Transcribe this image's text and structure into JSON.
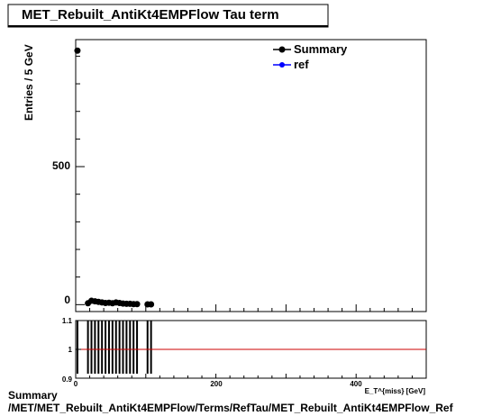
{
  "chart_data": {
    "type": "scatter",
    "title": "MET_Rebuilt_AntiKt4EMPFlow Tau term",
    "ylabel": "Entries / 5 GeV",
    "xlabel": "E_T^{miss} [GeV]",
    "xlim": [
      0,
      500
    ],
    "ylim": [
      -25,
      960
    ],
    "x_ticks": [
      "0",
      "200",
      "400"
    ],
    "y_ticks": [
      "0",
      "500"
    ],
    "legend_position": "top-right",
    "series": [
      {
        "name": "Summary",
        "color": "#000000",
        "points": [
          {
            "x": 2.5,
            "y": 920
          },
          {
            "x": 17.5,
            "y": 5
          },
          {
            "x": 22.5,
            "y": 14
          },
          {
            "x": 27.5,
            "y": 12
          },
          {
            "x": 32.5,
            "y": 10
          },
          {
            "x": 37.5,
            "y": 8
          },
          {
            "x": 42.5,
            "y": 6
          },
          {
            "x": 47.5,
            "y": 7
          },
          {
            "x": 52.5,
            "y": 5
          },
          {
            "x": 57.5,
            "y": 8
          },
          {
            "x": 62.5,
            "y": 6
          },
          {
            "x": 67.5,
            "y": 4
          },
          {
            "x": 72.5,
            "y": 3
          },
          {
            "x": 77.5,
            "y": 3
          },
          {
            "x": 82.5,
            "y": 2
          },
          {
            "x": 87.5,
            "y": 2
          },
          {
            "x": 102.5,
            "y": 1
          },
          {
            "x": 107.5,
            "y": 1
          }
        ]
      },
      {
        "name": "ref",
        "color": "#0000ff",
        "points": []
      }
    ],
    "ratio": {
      "ylim": [
        0.9,
        1.1
      ],
      "y_ticks": [
        "0.9",
        "1",
        "1.1"
      ],
      "x_ticks": [
        "0",
        "200",
        "400"
      ],
      "reference_line": 1,
      "reference_color": "#cc0000",
      "bars_x": [
        2.5,
        17.5,
        22.5,
        27.5,
        32.5,
        37.5,
        42.5,
        47.5,
        52.5,
        57.5,
        62.5,
        67.5,
        72.5,
        77.5,
        82.5,
        87.5,
        102.5,
        107.5
      ]
    }
  },
  "footer": {
    "line1": "Summary",
    "line2": "/MET/MET_Rebuilt_AntiKt4EMPFlow/Terms/RefTau/MET_Rebuilt_AntiKt4EMPFlow_Ref"
  }
}
